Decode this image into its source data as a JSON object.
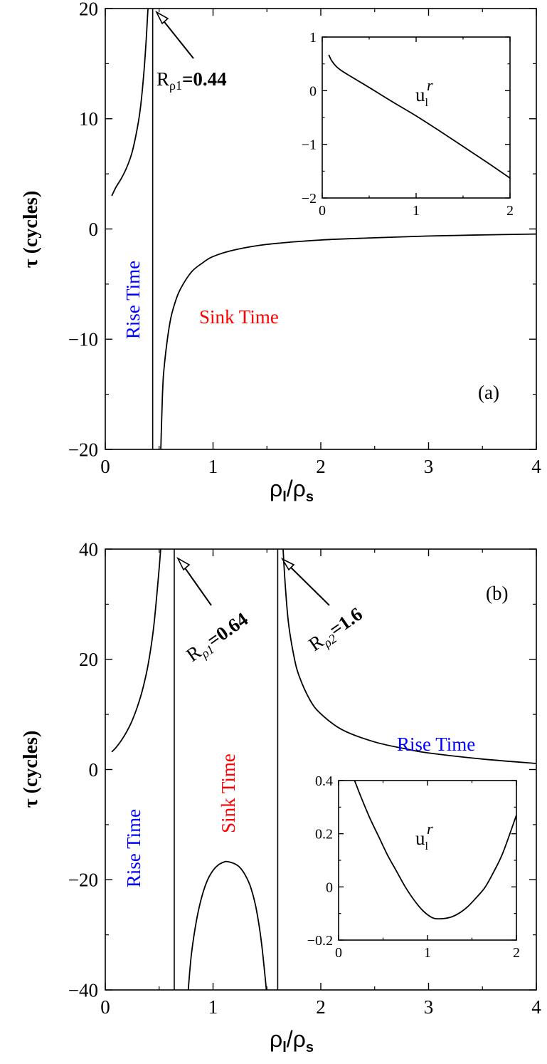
{
  "figure": {
    "panel_a": {
      "ylabel": "τ (cycles)",
      "xlabel_main": "ρ",
      "xlabel_sub1": "l",
      "xlabel_slash": "/ρ",
      "xlabel_sub2": "s",
      "panel_tag": "(a)",
      "rise_label": "Rise Time",
      "sink_label": "Sink Time",
      "annotation_R": "R",
      "annotation_sub": "ρ1",
      "annotation_eq": "=",
      "annotation_val": "0.44",
      "inset_label_main": "u",
      "inset_label_sub": "l",
      "inset_label_sup": "r"
    },
    "panel_b": {
      "ylabel": "τ (cycles)",
      "xlabel_main": "ρ",
      "xlabel_sub1": "l",
      "xlabel_slash": "/ρ",
      "xlabel_sub2": "s",
      "panel_tag": "(b)",
      "rise_label_left": "Rise Time",
      "rise_label_right": "Rise Time",
      "sink_label": "Sink Time",
      "annotation1_R": "R",
      "annotation1_sub": "ρ1",
      "annotation1_eq": "=",
      "annotation1_val": "0.64",
      "annotation2_R": "R",
      "annotation2_sub": "ρ2",
      "annotation2_eq": "=",
      "annotation2_val": "1.6",
      "inset_label_main": "u",
      "inset_label_sub": "l",
      "inset_label_sup": "r"
    },
    "colors": {
      "rise": "#0000ff",
      "sink": "#ff0000",
      "line": "#000000"
    }
  },
  "chart_data": [
    {
      "type": "line",
      "panel": "a",
      "xlim": [
        0,
        4
      ],
      "ylim": [
        -20,
        20
      ],
      "xticks": [
        0,
        1,
        2,
        3,
        4
      ],
      "yticks": [
        -20,
        -10,
        0,
        10,
        20
      ],
      "asymptote_x": 0.44,
      "series": [
        {
          "x": [
            0.06,
            0.1,
            0.15,
            0.2,
            0.25,
            0.3,
            0.33,
            0.36,
            0.38,
            0.4,
            0.42
          ],
          "y": [
            3,
            3.8,
            4.6,
            5.6,
            7.0,
            9.3,
            11.3,
            14.4,
            17.2,
            20.5,
            22
          ]
        },
        {
          "x": [
            0.51,
            0.53,
            0.55,
            0.6,
            0.65,
            0.7,
            0.8,
            0.9,
            1.0,
            1.2,
            1.5,
            2.0,
            2.5,
            3.0,
            3.5,
            4.0
          ],
          "y": [
            -22,
            -15.2,
            -12.2,
            -8.5,
            -6.6,
            -5.4,
            -3.9,
            -3.1,
            -2.5,
            -1.9,
            -1.4,
            -1.0,
            -0.8,
            -0.64,
            -0.54,
            -0.46
          ]
        }
      ]
    },
    {
      "type": "line",
      "panel": "a-inset",
      "xlim": [
        0,
        2
      ],
      "ylim": [
        -2,
        1
      ],
      "xticks": [
        0,
        1,
        2
      ],
      "yticks": [
        -2,
        -1,
        0,
        1
      ],
      "series": [
        {
          "x": [
            0.07,
            0.1,
            0.15,
            0.2,
            0.3,
            0.5,
            0.75,
            1.0,
            1.25,
            1.5,
            1.75,
            2.0
          ],
          "y": [
            0.67,
            0.56,
            0.45,
            0.38,
            0.27,
            0.06,
            -0.21,
            -0.47,
            -0.75,
            -1.04,
            -1.33,
            -1.63
          ]
        }
      ]
    },
    {
      "type": "line",
      "panel": "b",
      "xlim": [
        0,
        4
      ],
      "ylim": [
        -40,
        40
      ],
      "xticks": [
        0,
        1,
        2,
        3,
        4
      ],
      "yticks": [
        -40,
        -20,
        0,
        20,
        40
      ],
      "asymptote_x": [
        0.64,
        1.6
      ],
      "series": [
        {
          "x": [
            0.06,
            0.1,
            0.15,
            0.2,
            0.25,
            0.3,
            0.35,
            0.4,
            0.45,
            0.5,
            0.53,
            0.56,
            0.58
          ],
          "y": [
            3.2,
            4.0,
            5.3,
            6.9,
            8.9,
            11.5,
            14.8,
            19.3,
            26,
            36.5,
            44,
            48,
            50
          ]
        },
        {
          "x": [
            0.77,
            0.8,
            0.85,
            0.9,
            0.95,
            1.0,
            1.05,
            1.1,
            1.13,
            1.2,
            1.25,
            1.3,
            1.35,
            1.4,
            1.45,
            1.5
          ],
          "y": [
            -40,
            -33.4,
            -27,
            -22.8,
            -20.0,
            -18.3,
            -17.3,
            -16.8,
            -16.7,
            -17.1,
            -17.8,
            -19.2,
            -21.4,
            -25.2,
            -31.5,
            -41
          ]
        },
        {
          "x": [
            1.65,
            1.67,
            1.7,
            1.75,
            1.8,
            1.9,
            2.0,
            2.2,
            2.5,
            2.8,
            3.0,
            3.5,
            4.0
          ],
          "y": [
            40,
            33.5,
            26.6,
            20.6,
            16.9,
            12.6,
            10.1,
            7.2,
            5.0,
            3.7,
            3.0,
            1.9,
            1.1
          ]
        }
      ]
    },
    {
      "type": "line",
      "panel": "b-inset",
      "xlim": [
        0,
        2
      ],
      "ylim": [
        -0.2,
        0.4
      ],
      "xticks": [
        0,
        1,
        2
      ],
      "yticks": [
        -0.2,
        0,
        0.2,
        0.4
      ],
      "series": [
        {
          "x": [
            0.18,
            0.25,
            0.35,
            0.45,
            0.55,
            0.65,
            0.75,
            0.85,
            0.95,
            1.05,
            1.13,
            1.25,
            1.35,
            1.45,
            1.55,
            1.65,
            1.75,
            1.85,
            2.0
          ],
          "y": [
            0.4,
            0.34,
            0.26,
            0.19,
            0.12,
            0.06,
            0.0,
            -0.05,
            -0.09,
            -0.115,
            -0.12,
            -0.115,
            -0.1,
            -0.075,
            -0.04,
            0.0,
            0.06,
            0.13,
            0.27
          ]
        }
      ]
    }
  ]
}
